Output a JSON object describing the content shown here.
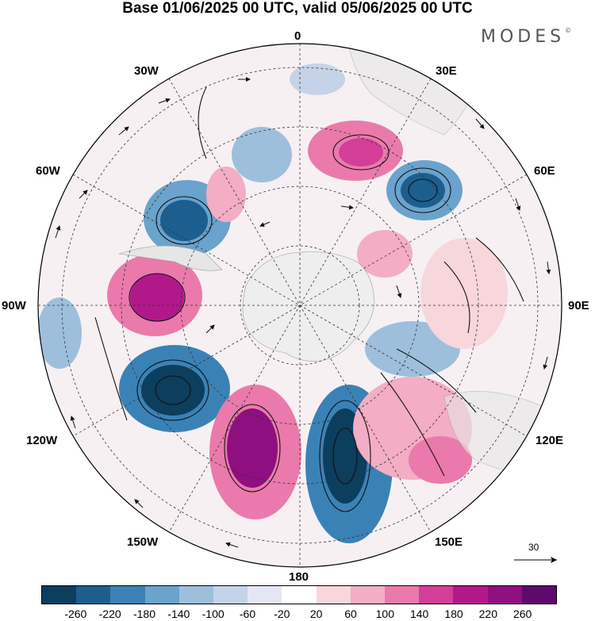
{
  "title": "Base 01/06/2025 00 UTC, valid 05/06/2025 00 UTC",
  "brand": "MODES",
  "brand_mark": "©",
  "map": {
    "projection": "south polar stereographic",
    "longitude_labels": {
      "top": "0",
      "top_right": "30E",
      "upper_right": "60E",
      "right": "90E",
      "lower_right": "120E",
      "bottom_right": "150E",
      "bottom": "180",
      "bottom_left": "150W",
      "lower_left": "120W",
      "left": "90W",
      "upper_left": "60W",
      "top_left": "30W"
    },
    "reference_vector": "30"
  },
  "colorbar": {
    "ticks": [
      "-260",
      "-220",
      "-180",
      "-140",
      "-100",
      "-60",
      "-20",
      "20",
      "60",
      "100",
      "140",
      "180",
      "220",
      "260"
    ],
    "colors": [
      "#0c3e5e",
      "#1c5f8f",
      "#3a82b6",
      "#6aa3cb",
      "#9dbfdc",
      "#c4d3e8",
      "#e4e7f3",
      "#ffffff",
      "#f7d7dc",
      "#f3adc4",
      "#ea7aab",
      "#d33f98",
      "#b1198a",
      "#8e0f7f",
      "#5e0a6c"
    ]
  }
}
